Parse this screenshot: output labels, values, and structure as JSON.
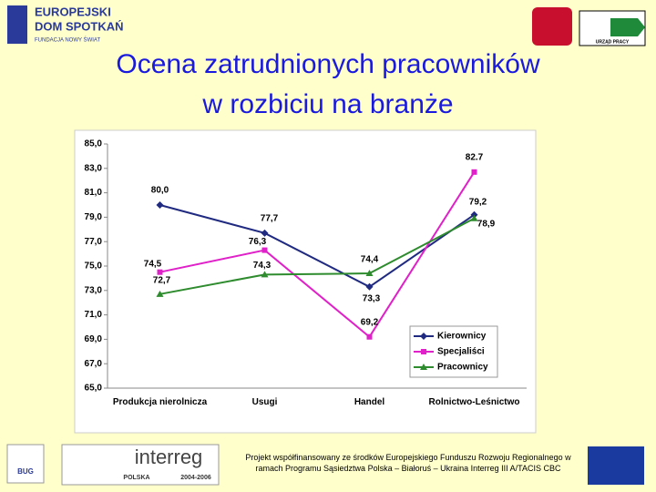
{
  "slide": {
    "title_line1": "Ocena zatrudnionych pracowników",
    "title_line2": "w rozbiciu na branże",
    "logo_left_line1": "EUROPEJSKI",
    "logo_left_line2": "DOM SPOTKAŃ",
    "logo_left_line3": "FUNDACJA NOWY ŚWIAT",
    "logo_right": "URZĄD PRACY",
    "interreg": "interreg",
    "interreg_country": "POLSKA",
    "interreg_years": "2004-2006",
    "euroregion": "BUG",
    "footer": "Projekt współfinansowany ze środków Europejskiego Funduszu Rozwoju Regionalnego w ramach Programu Sąsiedztwa Polska – Białoruś – Ukraina Interreg III A/TACIS CBC"
  },
  "chart_data": {
    "type": "line",
    "categories": [
      "Produkcja nierolnicza",
      "Usugi",
      "Handel",
      "Rolnictwo-Leśnictwo"
    ],
    "series": [
      {
        "name": "Kierownicy",
        "color": "#1f2a80",
        "marker": "diamond",
        "values": [
          80.0,
          77.7,
          73.3,
          79.2
        ],
        "value_labels": [
          "80,0",
          "77,7",
          "73,3",
          "79,2"
        ]
      },
      {
        "name": "Specjaliści",
        "color": "#e020c8",
        "marker": "square",
        "values": [
          74.5,
          76.3,
          69.2,
          82.7
        ],
        "value_labels": [
          "74,5",
          "76,3",
          "69,2",
          "82.7"
        ]
      },
      {
        "name": "Pracownicy",
        "color": "#2e8b2e",
        "marker": "triangle",
        "values": [
          72.7,
          74.3,
          74.4,
          78.9
        ],
        "value_labels": [
          "72,7",
          "74,3",
          "74,4",
          "78,9"
        ]
      }
    ],
    "ylim": [
      65,
      85
    ],
    "yticks": [
      {
        "value": 65,
        "label": "65,0"
      },
      {
        "value": 67,
        "label": "67,0"
      },
      {
        "value": 69,
        "label": "69,0"
      },
      {
        "value": 71,
        "label": "71,0"
      },
      {
        "value": 73,
        "label": "73,0"
      },
      {
        "value": 75,
        "label": "75,0"
      },
      {
        "value": 77,
        "label": "77,0"
      },
      {
        "value": 79,
        "label": "79,0"
      },
      {
        "value": 81,
        "label": "81,0"
      },
      {
        "value": 83,
        "label": "83,0"
      },
      {
        "value": 85,
        "label": "85,0"
      }
    ],
    "grid": false,
    "legend": "lower right"
  }
}
